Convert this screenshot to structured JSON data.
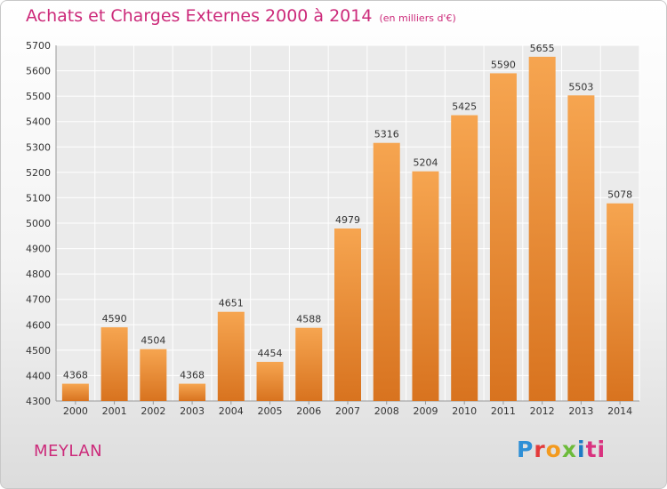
{
  "chart_data": {
    "type": "bar",
    "title": "Achats et Charges Externes 2000 à 2014",
    "subtitle": "(en milliers d'€)",
    "categories": [
      "2000",
      "2001",
      "2002",
      "2003",
      "2004",
      "2005",
      "2006",
      "2007",
      "2008",
      "2009",
      "2010",
      "2011",
      "2012",
      "2013",
      "2014"
    ],
    "values": [
      4368,
      4590,
      4504,
      4368,
      4651,
      4454,
      4588,
      4979,
      5316,
      5204,
      5425,
      5590,
      5655,
      5503,
      5078
    ],
    "ylim": [
      4300,
      5700
    ],
    "yticks": [
      4300,
      4400,
      4500,
      4600,
      4700,
      4800,
      4900,
      5000,
      5100,
      5200,
      5300,
      5400,
      5500,
      5600,
      5700
    ],
    "grid": true,
    "bar_color": "#f0913a",
    "bar_color_dark": "#d8731f"
  },
  "footer": {
    "city": "MEYLAN",
    "logo": [
      "P",
      "r",
      "o",
      "x",
      "i",
      "ti"
    ]
  }
}
